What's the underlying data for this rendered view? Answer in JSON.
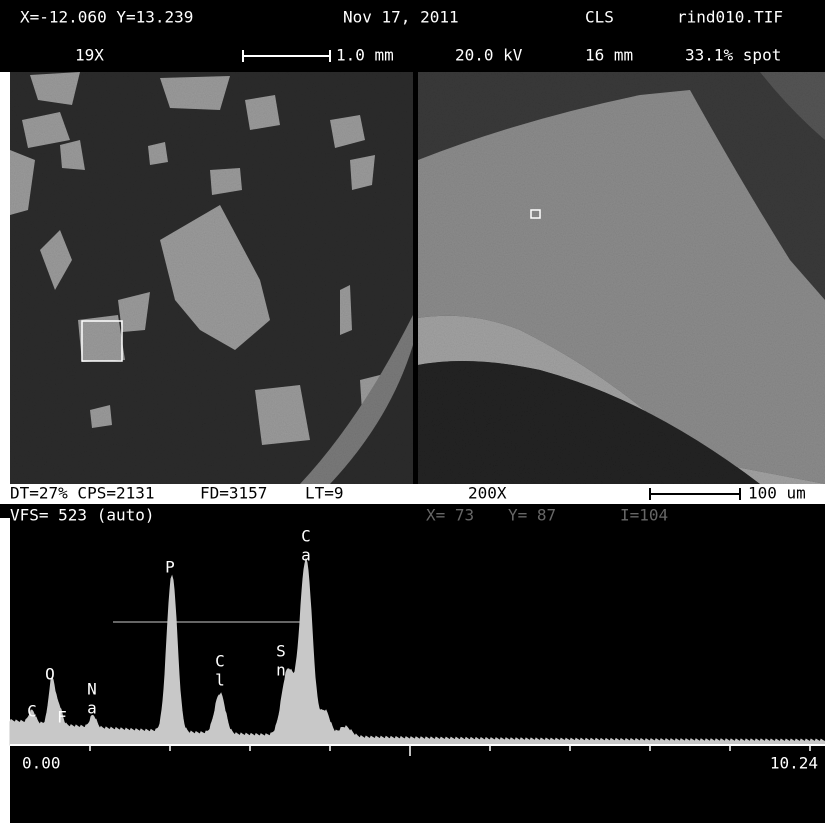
{
  "header": {
    "coords": "X=-12.060 Y=13.239",
    "date": "Nov 17, 2011",
    "operator": "CLS",
    "file": "rind010.TIF",
    "magnification": "19X",
    "scale_bar": "1.0 mm",
    "voltage": "20.0 kV",
    "working_distance": "16 mm",
    "spot": "33.1% spot"
  },
  "status": {
    "dead_time": "DT=27% CPS=2131",
    "fd": "FD=3157",
    "live_time": "LT=9",
    "magnification": "200X",
    "scale_bar": "100 um",
    "vfs": "VFS= 523 (auto)",
    "cursor_x": "X= 73",
    "cursor_y": "Y= 87",
    "intensity": "I=104"
  },
  "spectrum": {
    "peaks": [
      {
        "lines": [
          "C"
        ]
      },
      {
        "lines": [
          "O"
        ]
      },
      {
        "lines": [
          "F"
        ]
      },
      {
        "lines": [
          "N",
          "a"
        ]
      },
      {
        "lines": [
          "P"
        ]
      },
      {
        "lines": [
          "C",
          "l"
        ]
      },
      {
        "lines": [
          "S",
          "n"
        ]
      },
      {
        "lines": [
          "C",
          "a"
        ]
      }
    ],
    "x_start": "0.00",
    "x_end": "10.24"
  }
}
